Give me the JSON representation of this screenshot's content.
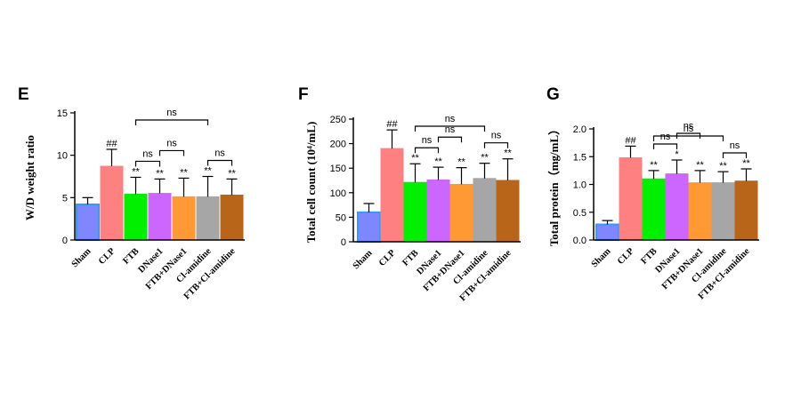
{
  "chart_data": [
    {
      "panel": "E",
      "type": "bar",
      "ylabel": "W/D weight ratio",
      "ylim": [
        0,
        15
      ],
      "yticks": [
        0,
        5,
        10,
        15
      ],
      "categories": [
        "Sham",
        "CLP",
        "FTB",
        "DNase1",
        "FTB+DNase1",
        "Cl-amidine",
        "FTB+Cl-amidine"
      ],
      "values": [
        4.2,
        8.7,
        5.4,
        5.5,
        5.1,
        5.1,
        5.3
      ],
      "errors": [
        0.8,
        2.0,
        2.0,
        1.7,
        2.2,
        2.4,
        1.9
      ],
      "annotations": [
        "",
        "##",
        "**",
        "**",
        "**",
        "**",
        "**"
      ],
      "comparisons": [
        {
          "from": 2,
          "to": 3,
          "label": "ns"
        },
        {
          "from": 3,
          "to": 4,
          "label": "ns"
        },
        {
          "from": 5,
          "to": 6,
          "label": "ns"
        },
        {
          "from": 2,
          "to": 5,
          "label": "ns"
        }
      ],
      "grid": false
    },
    {
      "panel": "F",
      "type": "bar",
      "ylabel": "Total cell count (10⁴/mL)",
      "ylim": [
        0,
        250
      ],
      "yticks": [
        0,
        50,
        100,
        150,
        200,
        250
      ],
      "categories": [
        "Sham",
        "CLP",
        "FTB",
        "DNase1",
        "FTB+DNase1",
        "Cl-amidine",
        "FTB+Cl-amidine"
      ],
      "values": [
        60,
        190,
        121,
        126,
        117,
        129,
        125
      ],
      "errors": [
        18,
        38,
        38,
        26,
        34,
        31,
        44
      ],
      "annotations": [
        "",
        "##",
        "**",
        "**",
        "**",
        "**",
        "**"
      ],
      "comparisons": [
        {
          "from": 2,
          "to": 3,
          "label": "ns"
        },
        {
          "from": 3,
          "to": 4,
          "label": "ns"
        },
        {
          "from": 5,
          "to": 6,
          "label": "ns"
        },
        {
          "from": 2,
          "to": 5,
          "label": "ns"
        }
      ],
      "grid": false
    },
    {
      "panel": "G",
      "type": "bar",
      "ylabel": "Total protein（mg/mL）",
      "ylim": [
        0,
        2.0
      ],
      "yticks": [
        "0.0",
        "0.5",
        "1.0",
        "1.5",
        "2.0"
      ],
      "categories": [
        "Sham",
        "CLP",
        "FTB",
        "DNase1",
        "FTB+DNase1",
        "Cl-amidine",
        "FTB+Cl-amidine"
      ],
      "values": [
        0.28,
        1.48,
        1.1,
        1.19,
        1.03,
        1.03,
        1.06
      ],
      "errors": [
        0.07,
        0.21,
        0.15,
        0.25,
        0.22,
        0.2,
        0.22
      ],
      "annotations": [
        "",
        "##",
        "**",
        "*",
        "**",
        "**",
        "**"
      ],
      "comparisons": [
        {
          "from": 2,
          "to": 3,
          "label": "ns"
        },
        {
          "from": 3,
          "to": 4,
          "label": "ns"
        },
        {
          "from": 5,
          "to": 6,
          "label": "ns"
        },
        {
          "from": 2,
          "to": 5,
          "label": "ns"
        }
      ],
      "grid": false
    }
  ],
  "colors": {
    "bars": [
      "#7f86ff",
      "#ff8080",
      "#00f000",
      "#cc66ff",
      "#ff9933",
      "#a6a6a6",
      "#b8651a"
    ],
    "bar_edge": [
      "#3399ff",
      "#ff8080",
      "#00f000",
      "#cc66ff",
      "#ff9933",
      "#a6a6a6",
      "#b8651a"
    ],
    "axis": "#000000",
    "error": "#000000"
  }
}
